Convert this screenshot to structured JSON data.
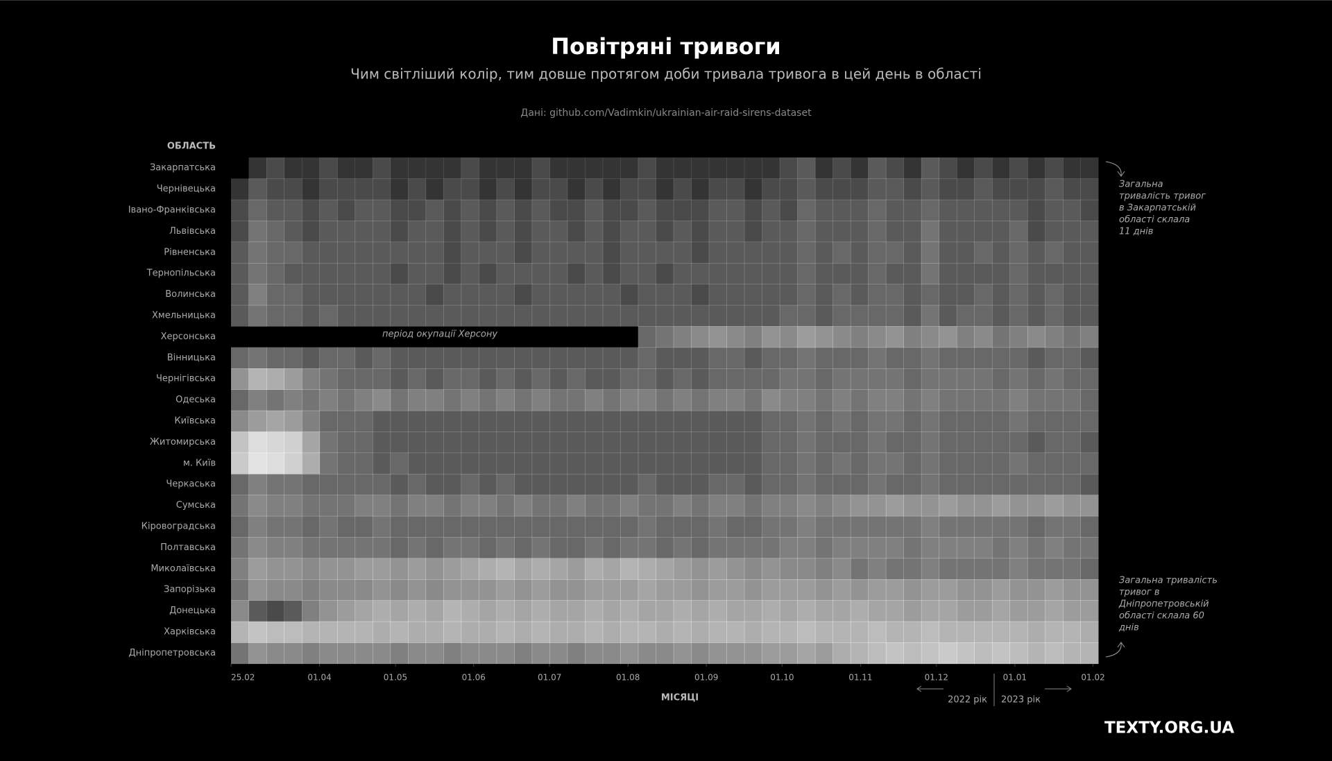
{
  "chart_data": {
    "type": "heatmap",
    "title": "Повітряні тривоги",
    "subtitle": "Чим світліший колір, тим довше протягом доби тривала тривога в цей день в області",
    "source": "Дані: github.com/Vadimkin/ukrainian-air-raid-sirens-dataset",
    "y_label": "ОБЛАСТЬ",
    "x_label": "МІСЯЦІ",
    "year_labels": [
      "2022 рік",
      "2023 рік"
    ],
    "annotations": [
      {
        "row": 0,
        "lines": [
          "Загальна",
          "тривалість тривог",
          "в Закарпатській",
          "області склала",
          "11 днів"
        ]
      },
      {
        "row": 23,
        "lines": [
          "Загальна тривалість",
          "тривог в",
          "Дніпропетровській",
          "області склала 60",
          "днів"
        ]
      },
      {
        "row": 8,
        "lines": [
          "період окупації Херсону"
        ]
      }
    ],
    "brand": "TEXTY.ORG.UA",
    "xlim": [
      0,
      49
    ],
    "xticks": [
      {
        "value": 0,
        "label": "25.02"
      },
      {
        "value": 5,
        "label": "01.04"
      },
      {
        "value": 9.29,
        "label": "01.05"
      },
      {
        "value": 13.71,
        "label": "01.06"
      },
      {
        "value": 18,
        "label": "01.07"
      },
      {
        "value": 22.43,
        "label": "01.08"
      },
      {
        "value": 26.86,
        "label": "01.09"
      },
      {
        "value": 31.14,
        "label": "01.10"
      },
      {
        "value": 35.57,
        "label": "01.11"
      },
      {
        "value": 39.86,
        "label": "01.12"
      },
      {
        "value": 44.29,
        "label": "01.01"
      },
      {
        "value": 48.71,
        "label": "01.02"
      }
    ],
    "zlim": [
      0,
      24
    ],
    "color": "#ffffff",
    "rows": [
      {
        "name": "Закарпатська",
        "values": [
          0,
          1,
          2,
          1,
          1,
          2,
          1,
          1,
          2,
          1,
          1,
          1,
          1,
          2,
          1,
          1,
          1,
          2,
          1,
          1,
          1,
          1,
          1,
          2,
          1,
          1,
          1,
          1,
          1,
          1,
          1,
          2,
          3,
          1,
          2,
          1,
          3,
          2,
          1,
          3,
          2,
          1,
          2,
          1,
          2,
          1,
          2,
          1,
          1
        ]
      },
      {
        "name": "Чернівецька",
        "values": [
          1,
          3,
          2,
          2,
          1,
          2,
          2,
          2,
          2,
          1,
          2,
          1,
          2,
          2,
          1,
          2,
          1,
          2,
          2,
          1,
          2,
          1,
          2,
          2,
          1,
          2,
          1,
          2,
          2,
          1,
          2,
          2,
          3,
          2,
          2,
          2,
          3,
          3,
          2,
          3,
          2,
          2,
          3,
          2,
          2,
          2,
          3,
          2,
          2
        ]
      },
      {
        "name": "Івано-Франківська",
        "values": [
          2,
          4,
          3,
          3,
          2,
          3,
          2,
          3,
          3,
          2,
          2,
          3,
          2,
          3,
          2,
          3,
          2,
          3,
          2,
          2,
          3,
          2,
          2,
          3,
          2,
          2,
          2,
          3,
          3,
          2,
          3,
          2,
          4,
          3,
          3,
          3,
          4,
          3,
          3,
          4,
          3,
          3,
          3,
          3,
          3,
          2,
          3,
          3,
          2
        ]
      },
      {
        "name": "Львівська",
        "values": [
          2,
          5,
          4,
          3,
          2,
          3,
          3,
          3,
          3,
          2,
          3,
          3,
          2,
          3,
          2,
          3,
          2,
          3,
          3,
          2,
          3,
          2,
          3,
          3,
          2,
          3,
          2,
          3,
          3,
          2,
          3,
          3,
          4,
          3,
          3,
          3,
          4,
          3,
          3,
          5,
          3,
          3,
          3,
          3,
          4,
          2,
          3,
          3,
          3
        ]
      },
      {
        "name": "Рівненська",
        "values": [
          3,
          5,
          4,
          4,
          3,
          3,
          3,
          3,
          3,
          3,
          3,
          3,
          2,
          3,
          3,
          3,
          2,
          3,
          3,
          3,
          3,
          2,
          3,
          3,
          3,
          3,
          2,
          3,
          3,
          3,
          3,
          3,
          4,
          3,
          4,
          3,
          4,
          4,
          3,
          5,
          3,
          3,
          4,
          3,
          4,
          3,
          4,
          3,
          3
        ]
      },
      {
        "name": "Тернопільська",
        "values": [
          3,
          5,
          4,
          3,
          3,
          3,
          3,
          3,
          3,
          2,
          3,
          3,
          2,
          3,
          2,
          3,
          3,
          3,
          3,
          2,
          3,
          2,
          3,
          3,
          2,
          3,
          3,
          3,
          3,
          3,
          3,
          3,
          4,
          3,
          3,
          3,
          4,
          3,
          3,
          5,
          3,
          3,
          3,
          3,
          4,
          3,
          3,
          3,
          3
        ]
      },
      {
        "name": "Волинська",
        "values": [
          3,
          6,
          4,
          4,
          3,
          3,
          3,
          3,
          3,
          3,
          3,
          2,
          3,
          3,
          3,
          3,
          2,
          3,
          3,
          3,
          3,
          3,
          2,
          3,
          3,
          3,
          2,
          3,
          3,
          3,
          3,
          3,
          4,
          3,
          4,
          3,
          4,
          4,
          3,
          4,
          3,
          3,
          4,
          3,
          4,
          3,
          4,
          3,
          3
        ]
      },
      {
        "name": "Хмельницька",
        "values": [
          3,
          5,
          4,
          4,
          3,
          4,
          3,
          3,
          3,
          3,
          3,
          3,
          3,
          3,
          3,
          3,
          3,
          3,
          3,
          3,
          3,
          3,
          3,
          3,
          3,
          3,
          3,
          3,
          3,
          3,
          3,
          4,
          4,
          3,
          4,
          4,
          4,
          4,
          3,
          5,
          3,
          4,
          4,
          3,
          4,
          3,
          4,
          3,
          3
        ]
      },
      {
        "name": "Херсонська",
        "values": [
          null,
          null,
          null,
          null,
          null,
          null,
          null,
          null,
          null,
          null,
          null,
          null,
          null,
          null,
          null,
          null,
          null,
          null,
          null,
          null,
          null,
          null,
          null,
          4,
          5,
          6,
          7,
          8,
          7,
          6,
          8,
          7,
          9,
          8,
          7,
          6,
          7,
          8,
          6,
          7,
          8,
          6,
          7,
          5,
          6,
          7,
          6,
          5,
          6
        ]
      },
      {
        "name": "Вінницька",
        "values": [
          4,
          5,
          4,
          4,
          3,
          4,
          4,
          3,
          4,
          3,
          3,
          3,
          3,
          3,
          3,
          3,
          3,
          3,
          3,
          3,
          3,
          3,
          3,
          4,
          3,
          3,
          3,
          4,
          4,
          3,
          4,
          4,
          5,
          4,
          4,
          4,
          5,
          4,
          4,
          5,
          4,
          4,
          4,
          4,
          4,
          3,
          4,
          4,
          3
        ]
      },
      {
        "name": "Чернігівська",
        "values": [
          8,
          12,
          11,
          9,
          6,
          5,
          4,
          4,
          4,
          3,
          4,
          3,
          4,
          4,
          3,
          4,
          3,
          4,
          3,
          4,
          3,
          3,
          4,
          4,
          3,
          4,
          3,
          4,
          4,
          4,
          4,
          5,
          5,
          4,
          5,
          5,
          5,
          5,
          4,
          5,
          5,
          5,
          5,
          4,
          5,
          4,
          5,
          4,
          4
        ]
      },
      {
        "name": "Одеська",
        "values": [
          4,
          6,
          5,
          6,
          5,
          6,
          5,
          6,
          7,
          5,
          6,
          6,
          5,
          6,
          5,
          6,
          5,
          6,
          5,
          5,
          6,
          5,
          6,
          6,
          5,
          6,
          5,
          6,
          6,
          5,
          7,
          6,
          6,
          5,
          6,
          5,
          6,
          6,
          5,
          6,
          5,
          5,
          5,
          5,
          6,
          5,
          5,
          5,
          4
        ]
      },
      {
        "name": "Київська",
        "values": [
          7,
          9,
          10,
          9,
          6,
          4,
          4,
          4,
          3,
          3,
          3,
          3,
          3,
          3,
          3,
          3,
          3,
          3,
          3,
          3,
          3,
          3,
          3,
          3,
          3,
          3,
          3,
          3,
          3,
          3,
          4,
          4,
          5,
          4,
          5,
          4,
          5,
          5,
          4,
          5,
          4,
          4,
          4,
          4,
          5,
          4,
          4,
          4,
          4
        ]
      },
      {
        "name": "Житомирська",
        "values": [
          14,
          18,
          17,
          16,
          10,
          5,
          4,
          4,
          3,
          3,
          3,
          3,
          3,
          3,
          3,
          3,
          3,
          3,
          3,
          3,
          3,
          3,
          3,
          3,
          3,
          3,
          3,
          3,
          3,
          3,
          4,
          4,
          5,
          4,
          4,
          4,
          5,
          4,
          4,
          5,
          4,
          4,
          4,
          4,
          4,
          3,
          4,
          4,
          3
        ]
      },
      {
        "name": "м. Київ",
        "values": [
          15,
          19,
          18,
          16,
          11,
          5,
          4,
          4,
          3,
          4,
          3,
          3,
          3,
          3,
          3,
          3,
          3,
          3,
          3,
          3,
          3,
          3,
          3,
          3,
          3,
          3,
          3,
          3,
          3,
          3,
          4,
          4,
          5,
          4,
          5,
          4,
          5,
          5,
          4,
          5,
          4,
          4,
          4,
          4,
          5,
          4,
          4,
          4,
          4
        ]
      },
      {
        "name": "Черкаська",
        "values": [
          4,
          6,
          5,
          5,
          4,
          4,
          4,
          4,
          4,
          3,
          4,
          3,
          3,
          4,
          3,
          4,
          3,
          3,
          3,
          3,
          3,
          3,
          3,
          4,
          3,
          3,
          3,
          4,
          4,
          3,
          4,
          4,
          5,
          4,
          4,
          4,
          5,
          4,
          4,
          5,
          4,
          4,
          4,
          4,
          4,
          4,
          4,
          4,
          3
        ]
      },
      {
        "name": "Сумська",
        "values": [
          5,
          7,
          6,
          6,
          5,
          5,
          5,
          6,
          6,
          5,
          6,
          6,
          5,
          6,
          6,
          5,
          6,
          5,
          5,
          6,
          5,
          5,
          6,
          5,
          5,
          6,
          5,
          6,
          6,
          5,
          6,
          6,
          7,
          6,
          7,
          8,
          8,
          9,
          8,
          8,
          9,
          8,
          8,
          9,
          8,
          8,
          9,
          8,
          8
        ]
      },
      {
        "name": "Кіровоградська",
        "values": [
          4,
          6,
          5,
          5,
          4,
          5,
          4,
          4,
          5,
          4,
          4,
          4,
          4,
          4,
          4,
          4,
          4,
          4,
          4,
          4,
          4,
          4,
          4,
          5,
          4,
          4,
          4,
          5,
          4,
          4,
          5,
          5,
          6,
          5,
          5,
          5,
          5,
          5,
          5,
          6,
          5,
          5,
          5,
          5,
          5,
          4,
          5,
          5,
          4
        ]
      },
      {
        "name": "Полтавська",
        "values": [
          5,
          7,
          6,
          6,
          5,
          5,
          5,
          5,
          5,
          4,
          5,
          4,
          5,
          5,
          4,
          5,
          4,
          5,
          4,
          4,
          5,
          4,
          5,
          5,
          4,
          5,
          4,
          5,
          5,
          5,
          5,
          6,
          6,
          5,
          6,
          6,
          6,
          6,
          5,
          6,
          6,
          6,
          6,
          5,
          6,
          5,
          6,
          5,
          5
        ]
      },
      {
        "name": "Миколаївська",
        "values": [
          6,
          9,
          8,
          8,
          7,
          8,
          8,
          9,
          9,
          8,
          9,
          8,
          9,
          10,
          11,
          12,
          10,
          11,
          10,
          9,
          11,
          10,
          12,
          11,
          10,
          9,
          8,
          9,
          8,
          7,
          8,
          7,
          7,
          6,
          7,
          5,
          6,
          5,
          5,
          6,
          5,
          5,
          5,
          5,
          6,
          5,
          5,
          5,
          4
        ]
      },
      {
        "name": "Запорізька",
        "values": [
          5,
          8,
          7,
          7,
          6,
          7,
          7,
          7,
          8,
          7,
          8,
          7,
          8,
          8,
          8,
          9,
          8,
          9,
          8,
          8,
          9,
          9,
          9,
          10,
          9,
          9,
          8,
          9,
          9,
          8,
          9,
          9,
          9,
          8,
          9,
          8,
          9,
          9,
          8,
          9,
          9,
          8,
          8,
          9,
          8,
          8,
          9,
          8,
          8
        ]
      },
      {
        "name": "Донецька",
        "values": [
          7,
          3,
          2,
          3,
          6,
          8,
          9,
          10,
          11,
          10,
          11,
          10,
          12,
          11,
          10,
          11,
          10,
          11,
          10,
          10,
          11,
          10,
          11,
          10,
          10,
          11,
          10,
          11,
          10,
          10,
          11,
          10,
          11,
          10,
          10,
          11,
          10,
          10,
          9,
          10,
          10,
          9,
          9,
          10,
          9,
          9,
          10,
          9,
          9
        ]
      },
      {
        "name": "Харківська",
        "values": [
          12,
          14,
          13,
          13,
          12,
          12,
          12,
          12,
          11,
          12,
          11,
          11,
          12,
          11,
          11,
          12,
          11,
          12,
          11,
          11,
          12,
          11,
          12,
          12,
          11,
          12,
          11,
          12,
          12,
          11,
          12,
          12,
          13,
          12,
          12,
          12,
          13,
          12,
          12,
          13,
          12,
          12,
          12,
          12,
          12,
          11,
          12,
          12,
          11
        ]
      },
      {
        "name": "Дніпропетровська",
        "values": [
          5,
          8,
          7,
          7,
          6,
          7,
          7,
          7,
          7,
          6,
          7,
          7,
          6,
          7,
          7,
          7,
          6,
          7,
          7,
          6,
          7,
          7,
          8,
          7,
          7,
          8,
          7,
          8,
          8,
          8,
          9,
          9,
          10,
          9,
          11,
          12,
          13,
          14,
          13,
          14,
          15,
          14,
          13,
          14,
          13,
          12,
          13,
          12,
          12
        ]
      }
    ]
  }
}
